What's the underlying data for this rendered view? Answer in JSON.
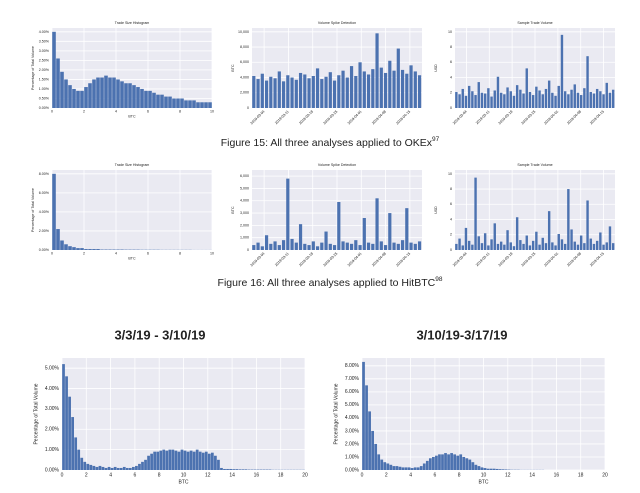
{
  "figures": [
    {
      "caption": "Figure 15: All three analyses applied to OKEx",
      "caption_sup": "97",
      "charts": [
        {
          "type": "histogram",
          "title": "Trade Size Histogram",
          "xlabel": "BTC",
          "ylabel": "Percentage of Total Volume",
          "color": "#4c72b0",
          "grid": true,
          "xlim": [
            0,
            10
          ],
          "xticks": [
            0,
            2,
            4,
            6,
            8,
            10
          ],
          "ylim": [
            0,
            4.2
          ],
          "yticks": [
            {
              "value": 0,
              "label": "0.00%"
            },
            {
              "value": 0.5,
              "label": "0.50%"
            },
            {
              "value": 1,
              "label": "1.00%"
            },
            {
              "value": 1.5,
              "label": "1.50%"
            },
            {
              "value": 2,
              "label": "2.00%"
            },
            {
              "value": 2.5,
              "label": "2.50%"
            },
            {
              "value": 3,
              "label": "3.00%"
            },
            {
              "value": 3.5,
              "label": "3.50%"
            },
            {
              "value": 4,
              "label": "4.00%"
            }
          ],
          "values": [
            4.0,
            2.6,
            1.9,
            1.5,
            1.2,
            1.0,
            0.9,
            0.9,
            1.1,
            1.3,
            1.5,
            1.6,
            1.6,
            1.7,
            1.6,
            1.6,
            1.5,
            1.4,
            1.3,
            1.3,
            1.2,
            1.1,
            1.0,
            0.9,
            0.9,
            0.8,
            0.7,
            0.7,
            0.6,
            0.6,
            0.5,
            0.5,
            0.5,
            0.4,
            0.4,
            0.4,
            0.3,
            0.3,
            0.3,
            0.3
          ]
        },
        {
          "type": "bar",
          "title": "Volume Spike Detection",
          "ylabel": "BTC",
          "color": "#4c72b0",
          "grid": true,
          "tick_labels": [
            "2019-03-04",
            "2019-03-11",
            "2019-03-18",
            "2019-03-25",
            "2019-04-01",
            "2019-04-08",
            "2019-04-15"
          ],
          "ylim": [
            0,
            10500
          ],
          "yticks": [
            0,
            {
              "value": 2000,
              "label": "2,000"
            },
            {
              "value": 4000,
              "label": "4,000"
            },
            {
              "value": 6000,
              "label": "6,000"
            },
            {
              "value": 8000,
              "label": "8,000"
            },
            {
              "value": 10000,
              "label": "10,000"
            }
          ],
          "values": [
            4200,
            3800,
            4500,
            3600,
            4100,
            3900,
            4800,
            3500,
            4300,
            4000,
            3700,
            4600,
            4400,
            3900,
            4200,
            5200,
            3800,
            4100,
            4700,
            3600,
            4300,
            4900,
            4000,
            5500,
            4200,
            6000,
            4800,
            4400,
            5100,
            9800,
            5300,
            4600,
            6200,
            4900,
            7800,
            5000,
            4500,
            5600,
            4800,
            4300
          ]
        },
        {
          "type": "bar",
          "title": "Sample Trade Volume",
          "ylabel": "USD",
          "color": "#4c72b0",
          "grid": true,
          "tick_labels": [
            "2019-03-04",
            "2019-03-11",
            "2019-03-18",
            "2019-03-25",
            "2019-04-01",
            "2019-04-08",
            "2019-04-15"
          ],
          "ylim": [
            0,
            10.5
          ],
          "yticks": [
            0,
            2,
            4,
            6,
            8,
            10
          ],
          "values": [
            2.1,
            1.8,
            2.5,
            1.6,
            2.9,
            2.2,
            1.7,
            3.4,
            2.0,
            1.9,
            2.6,
            1.5,
            2.3,
            4.1,
            2.0,
            1.8,
            2.7,
            2.2,
            1.6,
            3.0,
            2.4,
            1.9,
            5.2,
            2.1,
            1.7,
            2.8,
            2.3,
            1.8,
            2.5,
            3.6,
            2.0,
            1.6,
            2.9,
            9.6,
            2.2,
            1.8,
            2.4,
            3.1,
            2.0,
            1.7,
            2.6,
            6.8,
            2.1,
            1.9,
            2.5,
            2.2,
            1.8,
            3.3,
            2.0,
            2.4
          ]
        }
      ]
    },
    {
      "caption": "Figure 16: All three analyses applied to HitBTC",
      "caption_sup": "98",
      "charts": [
        {
          "type": "histogram",
          "title": "Trade Size Histogram",
          "xlabel": "BTC",
          "ylabel": "Percentage of Total Volume",
          "color": "#4c72b0",
          "grid": true,
          "xlim": [
            0,
            10
          ],
          "xticks": [
            0,
            2,
            4,
            6,
            8,
            10
          ],
          "ylim": [
            0,
            8.4
          ],
          "yticks": [
            {
              "value": 0,
              "label": "0.00%"
            },
            {
              "value": 2,
              "label": "2.00%"
            },
            {
              "value": 4,
              "label": "4.00%"
            },
            {
              "value": 6,
              "label": "6.00%"
            },
            {
              "value": 8,
              "label": "8.00%"
            }
          ],
          "values": [
            8.0,
            2.2,
            1.0,
            0.6,
            0.4,
            0.3,
            0.2,
            0.2,
            0.1,
            0.1,
            0.1,
            0.1,
            0.05,
            0.05,
            0.05,
            0.05,
            0.05,
            0.05,
            0.04,
            0.04,
            0.04,
            0.04,
            0.03,
            0.03,
            0.03,
            0.03,
            0.03,
            0.02,
            0.02,
            0.02,
            0.02,
            0.02,
            0.02,
            0.02,
            0.02,
            0.01,
            0.01,
            0.01,
            0.01,
            0.01
          ]
        },
        {
          "type": "bar",
          "title": "Volume Spike Detection",
          "ylabel": "BTC",
          "color": "#4c72b0",
          "grid": true,
          "tick_labels": [
            "2019-03-04",
            "2019-03-11",
            "2019-03-18",
            "2019-03-25",
            "2019-04-01",
            "2019-04-08",
            "2019-04-15"
          ],
          "ylim": [
            0,
            6500
          ],
          "yticks": [
            0,
            {
              "value": 1000,
              "label": "1,000"
            },
            {
              "value": 2000,
              "label": "2,000"
            },
            {
              "value": 3000,
              "label": "3,000"
            },
            {
              "value": 4000,
              "label": "4,000"
            },
            {
              "value": 5000,
              "label": "5,000"
            },
            {
              "value": 6000,
              "label": "6,000"
            }
          ],
          "values": [
            400,
            600,
            300,
            1200,
            500,
            700,
            400,
            800,
            5800,
            900,
            600,
            2100,
            500,
            400,
            700,
            300,
            600,
            1500,
            500,
            400,
            3900,
            700,
            600,
            500,
            800,
            400,
            2600,
            600,
            500,
            4200,
            700,
            400,
            3000,
            600,
            500,
            800,
            3400,
            600,
            500,
            700
          ]
        },
        {
          "type": "bar",
          "title": "Sample Trade Volume",
          "ylabel": "USD",
          "color": "#4c72b0",
          "grid": true,
          "tick_labels": [
            "2019-03-04",
            "2019-03-11",
            "2019-03-18",
            "2019-03-25",
            "2019-04-01",
            "2019-04-08",
            "2019-04-15"
          ],
          "ylim": [
            0,
            10.5
          ],
          "yticks": [
            0,
            2,
            4,
            6,
            8,
            10
          ],
          "values": [
            0.8,
            1.5,
            0.6,
            2.9,
            1.2,
            0.7,
            9.5,
            1.8,
            0.9,
            2.2,
            0.6,
            1.4,
            3.5,
            0.8,
            1.1,
            0.7,
            2.6,
            1.0,
            0.5,
            4.3,
            1.3,
            0.8,
            1.9,
            0.6,
            1.2,
            2.4,
            0.7,
            1.6,
            0.9,
            5.1,
            1.0,
            0.6,
            2.1,
            1.4,
            0.8,
            8.0,
            2.7,
            1.1,
            0.7,
            1.9,
            0.9,
            6.5,
            1.5,
            0.8,
            1.2,
            2.3,
            0.7,
            1.0,
            3.1,
            0.9
          ]
        }
      ]
    }
  ],
  "weekly": [
    {
      "heading": "3/3/19 - 3/10/19",
      "chart": {
        "type": "histogram",
        "xlabel": "BTC",
        "ylabel": "Percentage of Total Volume",
        "color": "#4c72b0",
        "grid": true,
        "xlim": [
          0,
          20
        ],
        "xticks": [
          0,
          2,
          4,
          6,
          8,
          10,
          12,
          14,
          16,
          18,
          20
        ],
        "ylim": [
          0,
          5.5
        ],
        "yticks": [
          {
            "value": 0,
            "label": "0.00%"
          },
          {
            "value": 1,
            "label": "1.00%"
          },
          {
            "value": 2,
            "label": "2.00%"
          },
          {
            "value": 3,
            "label": "3.00%"
          },
          {
            "value": 4,
            "label": "4.00%"
          },
          {
            "value": 5,
            "label": "5.00%"
          }
        ],
        "values": [
          5.2,
          4.6,
          3.6,
          2.6,
          1.6,
          1.0,
          0.6,
          0.4,
          0.3,
          0.25,
          0.2,
          0.15,
          0.2,
          0.15,
          0.1,
          0.15,
          0.1,
          0.15,
          0.1,
          0.1,
          0.15,
          0.1,
          0.1,
          0.15,
          0.2,
          0.3,
          0.4,
          0.5,
          0.7,
          0.8,
          0.9,
          0.9,
          0.95,
          1.0,
          0.95,
          1.0,
          1.0,
          0.95,
          0.9,
          1.0,
          0.95,
          0.9,
          0.95,
          0.9,
          1.0,
          0.9,
          0.85,
          0.9,
          0.8,
          0.85,
          0.7,
          0.5,
          0.1,
          0.05,
          0.05,
          0.05,
          0.04,
          0.04,
          0.03,
          0.03,
          0.03,
          0.02,
          0.02,
          0.02,
          0.02,
          0.02,
          0.02,
          0.02,
          0.02,
          0.01,
          0.01,
          0.01,
          0.01,
          0.01,
          0.01,
          0.01,
          0.01,
          0.01,
          0.01,
          0.01
        ]
      }
    },
    {
      "heading": "3/10/19-3/17/19",
      "chart": {
        "type": "histogram",
        "xlabel": "BTC",
        "ylabel": "Percentage of Total Volume",
        "color": "#4c72b0",
        "grid": true,
        "xlim": [
          0,
          20
        ],
        "xticks": [
          0,
          2,
          4,
          6,
          8,
          10,
          12,
          14,
          16,
          18,
          20
        ],
        "ylim": [
          0,
          8.6
        ],
        "yticks": [
          {
            "value": 0,
            "label": "0.00%"
          },
          {
            "value": 1,
            "label": "1.00%"
          },
          {
            "value": 2,
            "label": "2.00%"
          },
          {
            "value": 3,
            "label": "3.00%"
          },
          {
            "value": 4,
            "label": "4.00%"
          },
          {
            "value": 5,
            "label": "5.00%"
          },
          {
            "value": 6,
            "label": "6.00%"
          },
          {
            "value": 7,
            "label": "7.00%"
          },
          {
            "value": 8,
            "label": "8.00%"
          }
        ],
        "values": [
          8.3,
          6.5,
          4.5,
          3.0,
          2.0,
          1.2,
          0.8,
          0.6,
          0.5,
          0.4,
          0.3,
          0.3,
          0.25,
          0.2,
          0.2,
          0.2,
          0.15,
          0.2,
          0.2,
          0.3,
          0.5,
          0.7,
          0.9,
          1.0,
          1.1,
          1.2,
          1.2,
          1.3,
          1.2,
          1.3,
          1.2,
          1.1,
          1.2,
          1.0,
          0.9,
          0.8,
          0.6,
          0.4,
          0.3,
          0.2,
          0.15,
          0.1,
          0.1,
          0.1,
          0.08,
          0.06,
          0.05,
          0.04,
          0.03,
          0.02,
          0.02,
          0.02,
          0.01,
          0.01,
          0.01,
          0.01,
          0.01,
          0.01,
          0.01,
          0.01,
          0,
          0,
          0,
          0,
          0,
          0,
          0,
          0,
          0,
          0,
          0,
          0,
          0,
          0,
          0,
          0,
          0,
          0,
          0,
          0
        ]
      }
    }
  ]
}
